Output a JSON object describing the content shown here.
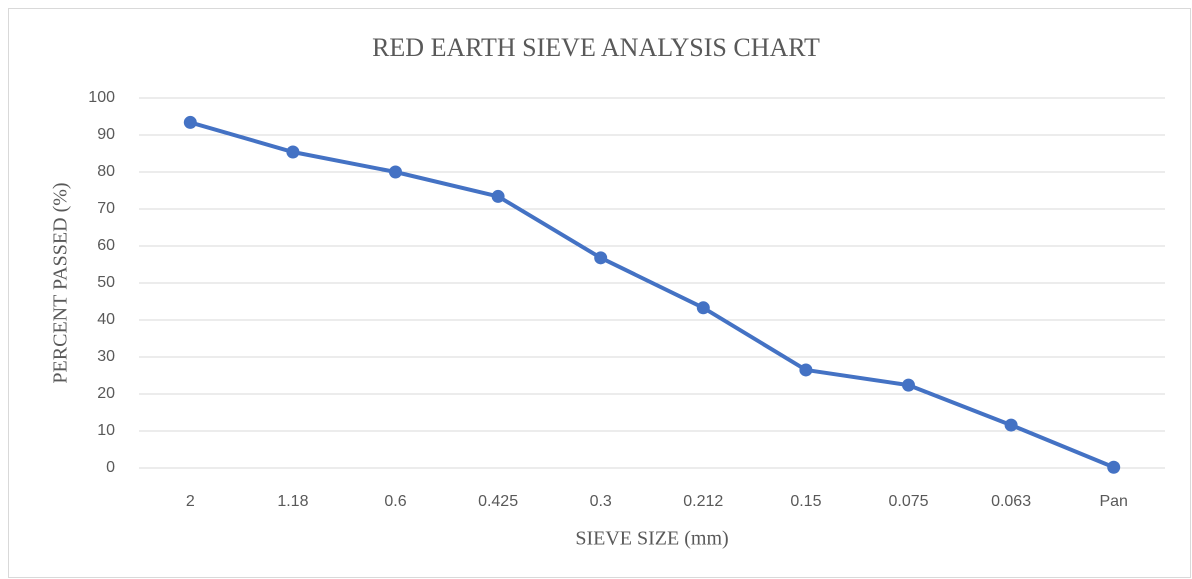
{
  "chart_data": {
    "type": "line",
    "title": "RED EARTH SIEVE ANALYSIS CHART",
    "x_label": "SIEVE SIZE (mm)",
    "y_label": "PERCENT PASSED (%)",
    "categories": [
      "2",
      "1.18",
      "0.6",
      "0.425",
      "0.3",
      "0.212",
      "0.15",
      "0.075",
      "0.063",
      "Pan"
    ],
    "series": [
      {
        "name": "Percent passed",
        "color": "#4472c4",
        "values": [
          93.4,
          85.4,
          80,
          73.4,
          56.8,
          43.3,
          26.5,
          22.4,
          11.6,
          0.2
        ]
      }
    ],
    "ylim": [
      0,
      100
    ],
    "yticks": [
      0,
      10,
      20,
      30,
      40,
      50,
      60,
      70,
      80,
      90,
      100
    ],
    "grid": true
  }
}
